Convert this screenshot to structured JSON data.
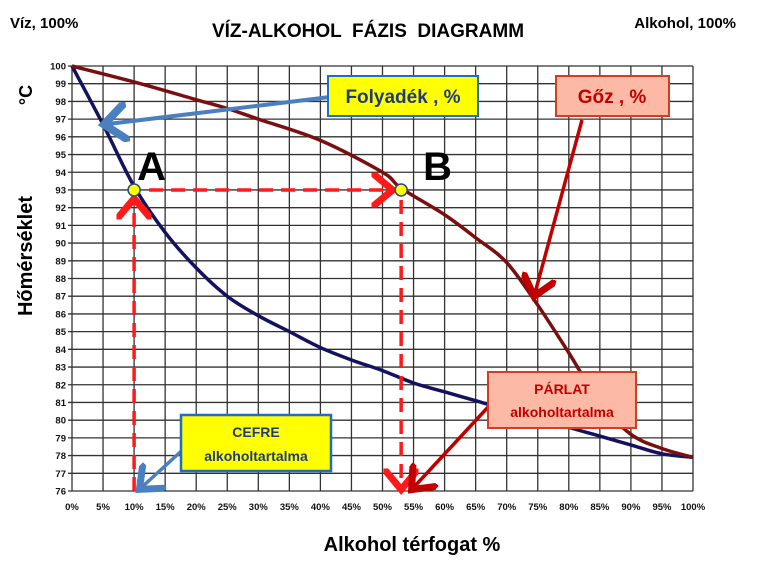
{
  "chart_data": {
    "type": "line",
    "title": "VÍZ-ALKOHOL  FÁZIS  DIAGRAMM",
    "corner_left": "Víz, 100%",
    "corner_right": "Alkohol, 100%",
    "xlabel": "Alkohol térfogat %",
    "ylabel": "Hőmérséklet",
    "yunit": "°C",
    "xlim": [
      0,
      100
    ],
    "ylim": [
      76,
      100
    ],
    "grid": true,
    "x_ticks": [
      "0%",
      "5%",
      "10%",
      "15%",
      "20%",
      "25%",
      "30%",
      "35%",
      "40%",
      "45%",
      "50%",
      "55%",
      "60%",
      "65%",
      "70%",
      "75%",
      "80%",
      "85%",
      "90%",
      "95%",
      "100%"
    ],
    "y_ticks": [
      "76",
      "77",
      "78",
      "79",
      "80",
      "81",
      "82",
      "83",
      "84",
      "85",
      "86",
      "87",
      "88",
      "89",
      "90",
      "91",
      "92",
      "93",
      "94",
      "95",
      "96",
      "97",
      "98",
      "99",
      "100"
    ],
    "series": [
      {
        "name": "Folyadék , %",
        "color": "#14125e",
        "x": [
          0,
          5,
          10,
          15,
          20,
          25,
          30,
          35,
          40,
          45,
          50,
          55,
          60,
          65,
          70,
          75,
          80,
          85,
          90,
          95,
          100
        ],
        "y": [
          100,
          96.7,
          93.2,
          90.6,
          88.6,
          87,
          85.9,
          85,
          84.1,
          83.4,
          82.8,
          82.1,
          81.6,
          81.1,
          80.6,
          80.2,
          79.6,
          79.1,
          78.6,
          78.1,
          77.9
        ]
      },
      {
        "name": "Gőz , %",
        "color": "#7a0f0f",
        "x": [
          0,
          10,
          20,
          25,
          30,
          40,
          50,
          53,
          60,
          65,
          70,
          75,
          80,
          85,
          90,
          95,
          100
        ],
        "y": [
          100,
          99.1,
          98.1,
          97.6,
          97,
          95.8,
          94,
          93.1,
          91.6,
          90.3,
          88.9,
          86.5,
          83.8,
          81,
          79.2,
          78.4,
          77.9
        ]
      }
    ],
    "points": [
      {
        "label": "A",
        "x": 10,
        "y": 93
      },
      {
        "label": "B",
        "x": 53,
        "y": 93
      }
    ],
    "annotations": {
      "liquid": "Folyadék , %",
      "vapor": "Gőz , %",
      "cefre_1": "CEFRE",
      "cefre_2": "alkoholtartalma",
      "parlat_1": "PÁRLAT",
      "parlat_2": "alkoholtartalma"
    }
  }
}
